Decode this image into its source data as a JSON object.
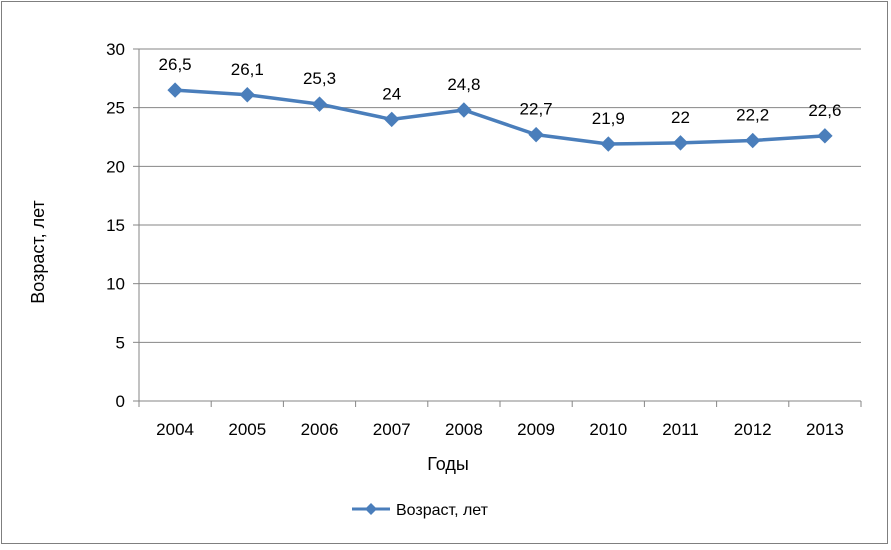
{
  "chart_data": {
    "type": "line",
    "title": "",
    "xlabel": "Годы",
    "ylabel": "Возраст, лет",
    "categories": [
      "2004",
      "2005",
      "2006",
      "2007",
      "2008",
      "2009",
      "2010",
      "2011",
      "2012",
      "2013"
    ],
    "series": [
      {
        "name": "Возраст, лет",
        "values": [
          26.5,
          26.1,
          25.3,
          24,
          24.8,
          22.7,
          21.9,
          22,
          22.2,
          22.6
        ],
        "data_labels": [
          "26,5",
          "26,1",
          "25,3",
          "24",
          "24,8",
          "22,7",
          "21,9",
          "22",
          "22,2",
          "22,6"
        ],
        "color": "#4a7ebb",
        "marker": "diamond"
      }
    ],
    "ylim": [
      0,
      30
    ],
    "yticks": [
      "0",
      "5",
      "10",
      "15",
      "20",
      "25",
      "30"
    ],
    "grid": true,
    "legend": "bottom"
  }
}
